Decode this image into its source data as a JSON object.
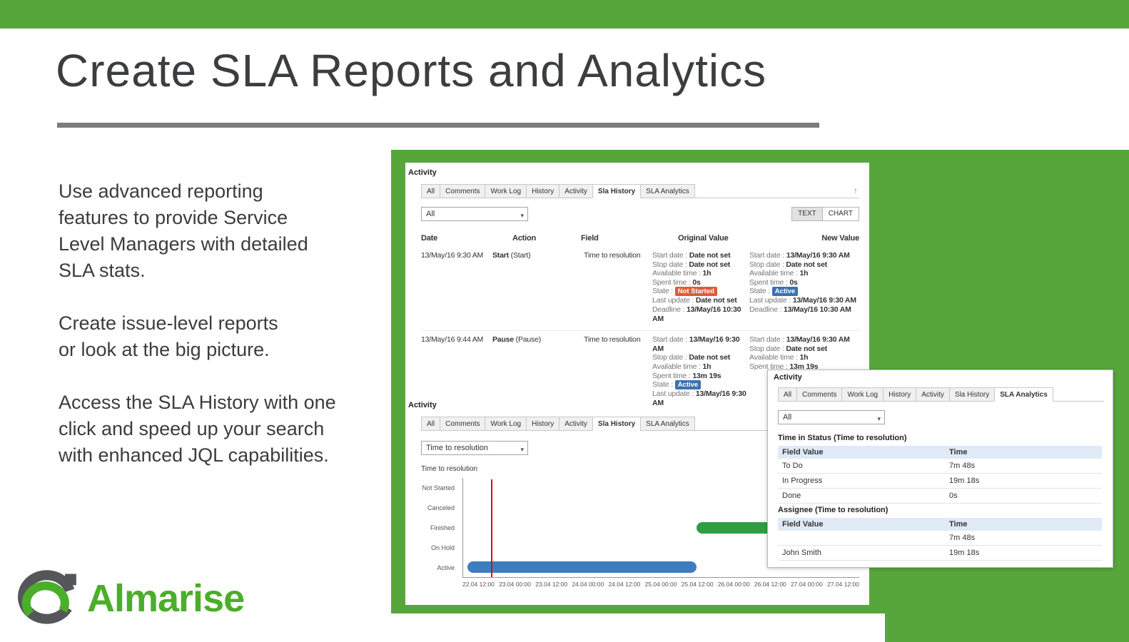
{
  "colors": {
    "brand_green": "#56a63c",
    "logo_green": "#4bae2a",
    "badge_not_started": "#dd5b38",
    "badge_active": "#3b73af",
    "bar_blue": "#3e7cc0",
    "bar_green": "#2f9e41",
    "marker_red": "#cc1414"
  },
  "slide": {
    "title": "Create SLA Reports and Analytics",
    "paragraphs": [
      {
        "lines": [
          "Use advanced reporting",
          "features to provide Service",
          "Level Managers with detailed",
          "SLA stats."
        ]
      },
      {
        "lines": [
          "Create issue-level reports",
          "or look at the big picture."
        ]
      },
      {
        "lines": [
          "Access the SLA History with one",
          "click and speed up your search",
          "with enhanced JQL capabilities."
        ]
      }
    ],
    "logo_text": "Almarise"
  },
  "panel1": {
    "heading": "Activity",
    "tabs": [
      {
        "label": "All",
        "cls": ""
      },
      {
        "label": "Comments",
        "cls": ""
      },
      {
        "label": "Work Log",
        "cls": ""
      },
      {
        "label": "History",
        "cls": ""
      },
      {
        "label": "Activity",
        "cls": ""
      },
      {
        "label": "Sla History",
        "cls": "active"
      },
      {
        "label": "SLA Analytics",
        "cls": ""
      }
    ],
    "collapse_icon": "↑",
    "filter_value": "All",
    "view_text": "TEXT",
    "view_chart": "CHART",
    "columns": [
      "Date",
      "Action",
      "Field",
      "Original Value",
      "New Value"
    ],
    "rows": [
      {
        "date": "13/May/16 9:30 AM",
        "action_main": "Start",
        "action_sub": "(Start)",
        "field": "Time to resolution",
        "original": [
          {
            "label": "Start date",
            "value": "Date not set",
            "cls": ""
          },
          {
            "label": "Stop date",
            "value": "Date not set",
            "cls": ""
          },
          {
            "label": "Available time",
            "value": "1h",
            "cls": ""
          },
          {
            "label": "Spent time",
            "value": "0s",
            "cls": ""
          },
          {
            "label": "State",
            "value": "Not Started",
            "cls": "badge badge-orange"
          },
          {
            "label": "Last update",
            "value": "Date not set",
            "cls": ""
          },
          {
            "label": "Deadline",
            "value": "13/May/16 10:30 AM",
            "cls": ""
          }
        ],
        "new": [
          {
            "label": "Start date",
            "value": "13/May/16 9:30 AM",
            "cls": ""
          },
          {
            "label": "Stop date",
            "value": "Date not set",
            "cls": ""
          },
          {
            "label": "Available time",
            "value": "1h",
            "cls": ""
          },
          {
            "label": "Spent time",
            "value": "0s",
            "cls": ""
          },
          {
            "label": "State",
            "value": "Active",
            "cls": "badge badge-blue"
          },
          {
            "label": "Last update",
            "value": "13/May/16 9:30 AM",
            "cls": ""
          },
          {
            "label": "Deadline",
            "value": "13/May/16 10:30 AM",
            "cls": ""
          }
        ]
      },
      {
        "date": "13/May/16 9:44 AM",
        "action_main": "Pause",
        "action_sub": "(Pause)",
        "field": "Time to resolution",
        "original": [
          {
            "label": "Start date",
            "value": "13/May/16 9:30 AM",
            "cls": ""
          },
          {
            "label": "Stop date",
            "value": "Date not set",
            "cls": ""
          },
          {
            "label": "Available time",
            "value": "1h",
            "cls": ""
          },
          {
            "label": "Spent time",
            "value": "13m 19s",
            "cls": ""
          },
          {
            "label": "State",
            "value": "Active",
            "cls": "badge badge-blue"
          },
          {
            "label": "Last update",
            "value": "13/May/16 9:30 AM",
            "cls": ""
          }
        ],
        "new": [
          {
            "label": "Start date",
            "value": "13/May/16 9:30 AM",
            "cls": ""
          },
          {
            "label": "Stop date",
            "value": "Date not set",
            "cls": ""
          },
          {
            "label": "Available time",
            "value": "1h",
            "cls": ""
          },
          {
            "label": "Spent time",
            "value": "13m 19s",
            "cls": ""
          }
        ]
      }
    ]
  },
  "panel2": {
    "heading": "Activity",
    "tabs": [
      {
        "label": "All",
        "cls": ""
      },
      {
        "label": "Comments",
        "cls": ""
      },
      {
        "label": "Work Log",
        "cls": ""
      },
      {
        "label": "History",
        "cls": ""
      },
      {
        "label": "Activity",
        "cls": ""
      },
      {
        "label": "Sla History",
        "cls": "active"
      },
      {
        "label": "SLA Analytics",
        "cls": ""
      }
    ],
    "filter_value": "Time to resolution",
    "chart": {
      "type": "timeline",
      "title": "Time to resolution",
      "categories": [
        "Not Started",
        "Canceled",
        "Finished",
        "On Hold",
        "Active"
      ],
      "x_labels": [
        "22.04 12:00",
        "23.04 00:00",
        "23.04 12:00",
        "24.04 00:00",
        "24.04 12:00",
        "25.04 00:00",
        "25.04 12:00",
        "26.04 00:00",
        "26.04 12:00",
        "27.04 00:00",
        "27.04 12:00"
      ],
      "bars": [
        {
          "name": "active",
          "category": "Active",
          "color": "#3e7cc0",
          "left_pct": 1,
          "width_pct": 58,
          "center_pct": 90
        },
        {
          "name": "finished",
          "category": "Finished",
          "color": "#2f9e41",
          "left_pct": 59,
          "width_pct": 36,
          "center_pct": 50
        }
      ],
      "marker": {
        "left_pct": 7,
        "color": "#cc1414"
      }
    }
  },
  "panel3": {
    "heading": "Activity",
    "tabs": [
      {
        "label": "All",
        "cls": ""
      },
      {
        "label": "Comments",
        "cls": ""
      },
      {
        "label": "Work Log",
        "cls": ""
      },
      {
        "label": "History",
        "cls": ""
      },
      {
        "label": "Activity",
        "cls": ""
      },
      {
        "label": "Sla History",
        "cls": ""
      },
      {
        "label": "SLA Analytics",
        "cls": "active"
      }
    ],
    "filter_value": "All",
    "sections": [
      {
        "title": "Time in Status (Time to resolution)",
        "col1": "Field Value",
        "col2": "Time",
        "rows": [
          {
            "field": "To Do",
            "time": "7m 48s"
          },
          {
            "field": "In Progress",
            "time": "19m 18s"
          },
          {
            "field": "Done",
            "time": "0s"
          }
        ]
      },
      {
        "title": "Assignee (Time to resolution)",
        "col1": "Field Value",
        "col2": "Time",
        "rows": [
          {
            "field": "",
            "time": "7m 48s"
          },
          {
            "field": "John Smith",
            "time": "19m 18s"
          }
        ]
      }
    ]
  }
}
